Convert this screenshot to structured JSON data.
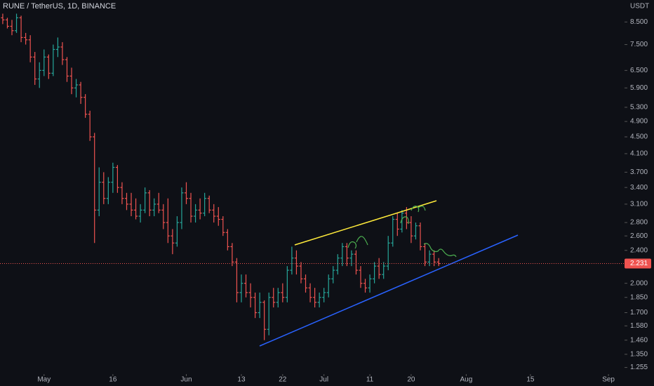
{
  "chart_data": {
    "type": "ohlc",
    "title": "RUNE / TetherUS, 1D, BINANCE",
    "y_axis_label": "USDT",
    "log_scale": true,
    "up_color": "#26a69a",
    "down_color": "#ef5350",
    "ylim": [
      1.21,
      9.6
    ],
    "xlim": [
      -0.6,
      135.5
    ],
    "yticks": [
      {
        "value": 8.5,
        "label": "8.500"
      },
      {
        "value": 7.5,
        "label": "7.500"
      },
      {
        "value": 6.5,
        "label": "6.500"
      },
      {
        "value": 5.9,
        "label": "5.900"
      },
      {
        "value": 5.3,
        "label": "5.300"
      },
      {
        "value": 4.9,
        "label": "4.900"
      },
      {
        "value": 4.5,
        "label": "4.500"
      },
      {
        "value": 4.1,
        "label": "4.100"
      },
      {
        "value": 3.7,
        "label": "3.700"
      },
      {
        "value": 3.4,
        "label": "3.400"
      },
      {
        "value": 3.1,
        "label": "3.100"
      },
      {
        "value": 2.8,
        "label": "2.800"
      },
      {
        "value": 2.6,
        "label": "2.600"
      },
      {
        "value": 2.4,
        "label": "2.400"
      },
      {
        "value": 2.0,
        "label": "2.000"
      },
      {
        "value": 1.85,
        "label": "1.850"
      },
      {
        "value": 1.7,
        "label": "1.700"
      },
      {
        "value": 1.58,
        "label": "1.580"
      },
      {
        "value": 1.46,
        "label": "1.460"
      },
      {
        "value": 1.35,
        "label": "1.350"
      },
      {
        "value": 1.255,
        "label": "1.255"
      }
    ],
    "xticks": [
      {
        "value": 9,
        "label": "May"
      },
      {
        "value": 24,
        "label": "16"
      },
      {
        "value": 40,
        "label": "Jun"
      },
      {
        "value": 52,
        "label": "13"
      },
      {
        "value": 61,
        "label": "22"
      },
      {
        "value": 70,
        "label": "Jul"
      },
      {
        "value": 80,
        "label": "11"
      },
      {
        "value": 89,
        "label": "20"
      },
      {
        "value": 101,
        "label": "Aug"
      },
      {
        "value": 115,
        "label": "15"
      },
      {
        "value": 132,
        "label": "Sep"
      }
    ],
    "ohlc": [
      [
        8.7,
        8.9,
        8.4,
        8.6
      ],
      [
        8.6,
        8.7,
        8.2,
        8.3
      ],
      [
        8.3,
        8.6,
        7.9,
        8.1
      ],
      [
        8.1,
        8.9,
        8.0,
        8.7
      ],
      [
        8.7,
        8.8,
        7.6,
        7.8
      ],
      [
        7.8,
        8.0,
        7.5,
        7.7
      ],
      [
        7.7,
        7.9,
        6.8,
        7.0
      ],
      [
        7.0,
        7.2,
        6.0,
        6.2
      ],
      [
        6.2,
        6.8,
        5.9,
        6.5
      ],
      [
        6.5,
        7.3,
        6.3,
        7.0
      ],
      [
        7.0,
        7.1,
        6.2,
        6.4
      ],
      [
        6.4,
        7.5,
        6.3,
        7.3
      ],
      [
        7.3,
        7.8,
        7.0,
        7.4
      ],
      [
        7.4,
        7.6,
        6.7,
        6.9
      ],
      [
        6.9,
        7.0,
        6.1,
        6.3
      ],
      [
        6.3,
        6.6,
        5.7,
        5.9
      ],
      [
        5.9,
        6.2,
        5.6,
        6.0
      ],
      [
        6.0,
        6.1,
        5.4,
        5.6
      ],
      [
        5.6,
        5.7,
        5.0,
        5.1
      ],
      [
        5.1,
        5.2,
        4.4,
        4.5
      ],
      [
        4.5,
        4.6,
        2.5,
        3.0
      ],
      [
        3.0,
        3.8,
        2.9,
        3.5
      ],
      [
        3.5,
        3.7,
        3.1,
        3.2
      ],
      [
        3.2,
        3.6,
        3.1,
        3.5
      ],
      [
        3.5,
        3.9,
        3.3,
        3.8
      ],
      [
        3.8,
        3.85,
        3.3,
        3.4
      ],
      [
        3.4,
        3.5,
        3.1,
        3.2
      ],
      [
        3.2,
        3.3,
        3.0,
        3.1
      ],
      [
        3.1,
        3.3,
        2.9,
        3.0
      ],
      [
        3.0,
        3.2,
        2.85,
        2.9
      ],
      [
        2.9,
        3.1,
        2.8,
        3.0
      ],
      [
        3.0,
        3.4,
        2.95,
        3.3
      ],
      [
        3.3,
        3.35,
        2.9,
        3.0
      ],
      [
        3.0,
        3.2,
        2.9,
        3.1
      ],
      [
        3.1,
        3.3,
        2.95,
        3.0
      ],
      [
        3.0,
        3.1,
        2.7,
        2.8
      ],
      [
        2.8,
        3.2,
        2.5,
        2.6
      ],
      [
        2.6,
        2.7,
        2.35,
        2.5
      ],
      [
        2.5,
        2.9,
        2.45,
        2.8
      ],
      [
        2.8,
        3.4,
        2.7,
        3.3
      ],
      [
        3.3,
        3.5,
        3.1,
        3.2
      ],
      [
        3.2,
        3.3,
        2.8,
        2.9
      ],
      [
        2.9,
        3.1,
        2.8,
        3.0
      ],
      [
        3.0,
        3.2,
        2.85,
        2.95
      ],
      [
        2.95,
        3.3,
        2.9,
        3.2
      ],
      [
        3.2,
        3.25,
        2.95,
        3.0
      ],
      [
        3.0,
        3.1,
        2.8,
        2.9
      ],
      [
        2.9,
        3.05,
        2.75,
        2.85
      ],
      [
        2.85,
        2.9,
        2.6,
        2.65
      ],
      [
        2.65,
        2.7,
        2.4,
        2.45
      ],
      [
        2.45,
        2.5,
        2.2,
        2.25
      ],
      [
        2.25,
        2.3,
        1.8,
        1.9
      ],
      [
        1.9,
        2.1,
        1.8,
        2.0
      ],
      [
        2.0,
        2.1,
        1.85,
        1.9
      ],
      [
        1.9,
        2.0,
        1.75,
        1.85
      ],
      [
        1.85,
        1.9,
        1.65,
        1.7
      ],
      [
        1.7,
        1.9,
        1.65,
        1.8
      ],
      [
        1.8,
        1.82,
        1.46,
        1.55
      ],
      [
        1.55,
        1.9,
        1.5,
        1.85
      ],
      [
        1.85,
        1.95,
        1.75,
        1.8
      ],
      [
        1.8,
        1.95,
        1.75,
        1.9
      ],
      [
        1.9,
        2.0,
        1.8,
        1.85
      ],
      [
        1.85,
        2.2,
        1.8,
        2.15
      ],
      [
        2.15,
        2.45,
        2.1,
        2.3
      ],
      [
        2.3,
        2.4,
        2.1,
        2.2
      ],
      [
        2.2,
        2.25,
        2.0,
        2.05
      ],
      [
        2.05,
        2.1,
        1.9,
        1.95
      ],
      [
        1.95,
        2.0,
        1.8,
        1.85
      ],
      [
        1.85,
        1.95,
        1.75,
        1.8
      ],
      [
        1.8,
        1.9,
        1.75,
        1.85
      ],
      [
        1.85,
        1.95,
        1.8,
        1.9
      ],
      [
        1.9,
        2.1,
        1.85,
        2.05
      ],
      [
        2.05,
        2.2,
        2.0,
        2.15
      ],
      [
        2.15,
        2.35,
        2.1,
        2.3
      ],
      [
        2.3,
        2.5,
        2.2,
        2.45
      ],
      [
        2.45,
        2.5,
        2.2,
        2.3
      ],
      [
        2.3,
        2.4,
        2.2,
        2.35
      ],
      [
        2.35,
        2.4,
        2.1,
        2.15
      ],
      [
        2.15,
        2.2,
        1.95,
        2.0
      ],
      [
        2.0,
        2.05,
        1.9,
        1.95
      ],
      [
        1.95,
        2.1,
        1.9,
        2.05
      ],
      [
        2.05,
        2.25,
        2.0,
        2.2
      ],
      [
        2.2,
        2.3,
        2.05,
        2.1
      ],
      [
        2.1,
        2.25,
        2.05,
        2.2
      ],
      [
        2.2,
        2.6,
        2.15,
        2.5
      ],
      [
        2.5,
        2.9,
        2.45,
        2.85
      ],
      [
        2.85,
        2.95,
        2.6,
        2.7
      ],
      [
        2.7,
        3.0,
        2.65,
        2.95
      ],
      [
        2.95,
        3.05,
        2.7,
        2.8
      ],
      [
        2.8,
        2.9,
        2.5,
        2.6
      ],
      [
        2.6,
        2.8,
        2.55,
        2.75
      ],
      [
        2.75,
        2.8,
        2.4,
        2.45
      ],
      [
        2.45,
        2.5,
        2.2,
        2.25
      ],
      [
        2.25,
        2.4,
        2.2,
        2.35
      ],
      [
        2.35,
        2.4,
        2.2,
        2.25
      ],
      [
        2.25,
        2.3,
        2.2,
        2.231
      ]
    ]
  }
}
